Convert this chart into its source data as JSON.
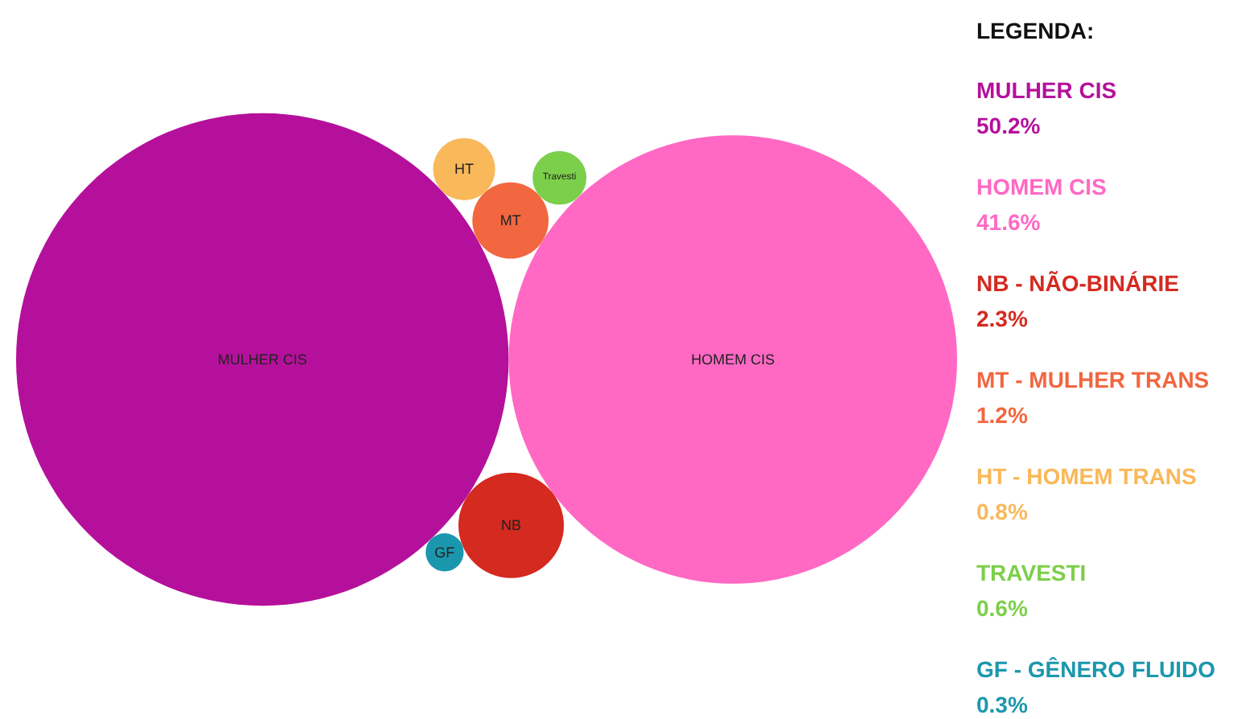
{
  "chart_data": {
    "type": "other",
    "legend_title": "LEGENDA:",
    "categories": [
      "MULHER CIS",
      "HOMEM CIS",
      "NB - NÃO-BINÁRIE",
      "MT - MULHER TRANS",
      "HT - HOMEM TRANS",
      "TRAVESTI",
      "GF - GÊNERO FLUIDO"
    ],
    "values": [
      50.2,
      41.6,
      2.3,
      1.2,
      0.8,
      0.6,
      0.3
    ],
    "value_labels": [
      "50.2%",
      "41.6%",
      "2.3%",
      "1.2%",
      "0.8%",
      "0.6%",
      "0.3%"
    ],
    "colors": [
      "#b5109b",
      "#ff69c4",
      "#d42a20",
      "#f26640",
      "#f9b85a",
      "#7ccf4a",
      "#1b97ad"
    ],
    "annotations": [
      {
        "text": "MULHER CIS",
        "x": "MULHER CIS"
      },
      {
        "text": "HOMEM CIS",
        "x": "HOMEM CIS"
      },
      {
        "text": "NB",
        "x": "NB - NÃO-BINÁRIE"
      },
      {
        "text": "MT",
        "x": "MT - MULHER TRANS"
      },
      {
        "text": "HT",
        "x": "HT - HOMEM TRANS"
      },
      {
        "text": "Travesti",
        "x": "TRAVESTI"
      },
      {
        "text": "GF",
        "x": "GF - GÊNERO FLUIDO"
      }
    ]
  }
}
